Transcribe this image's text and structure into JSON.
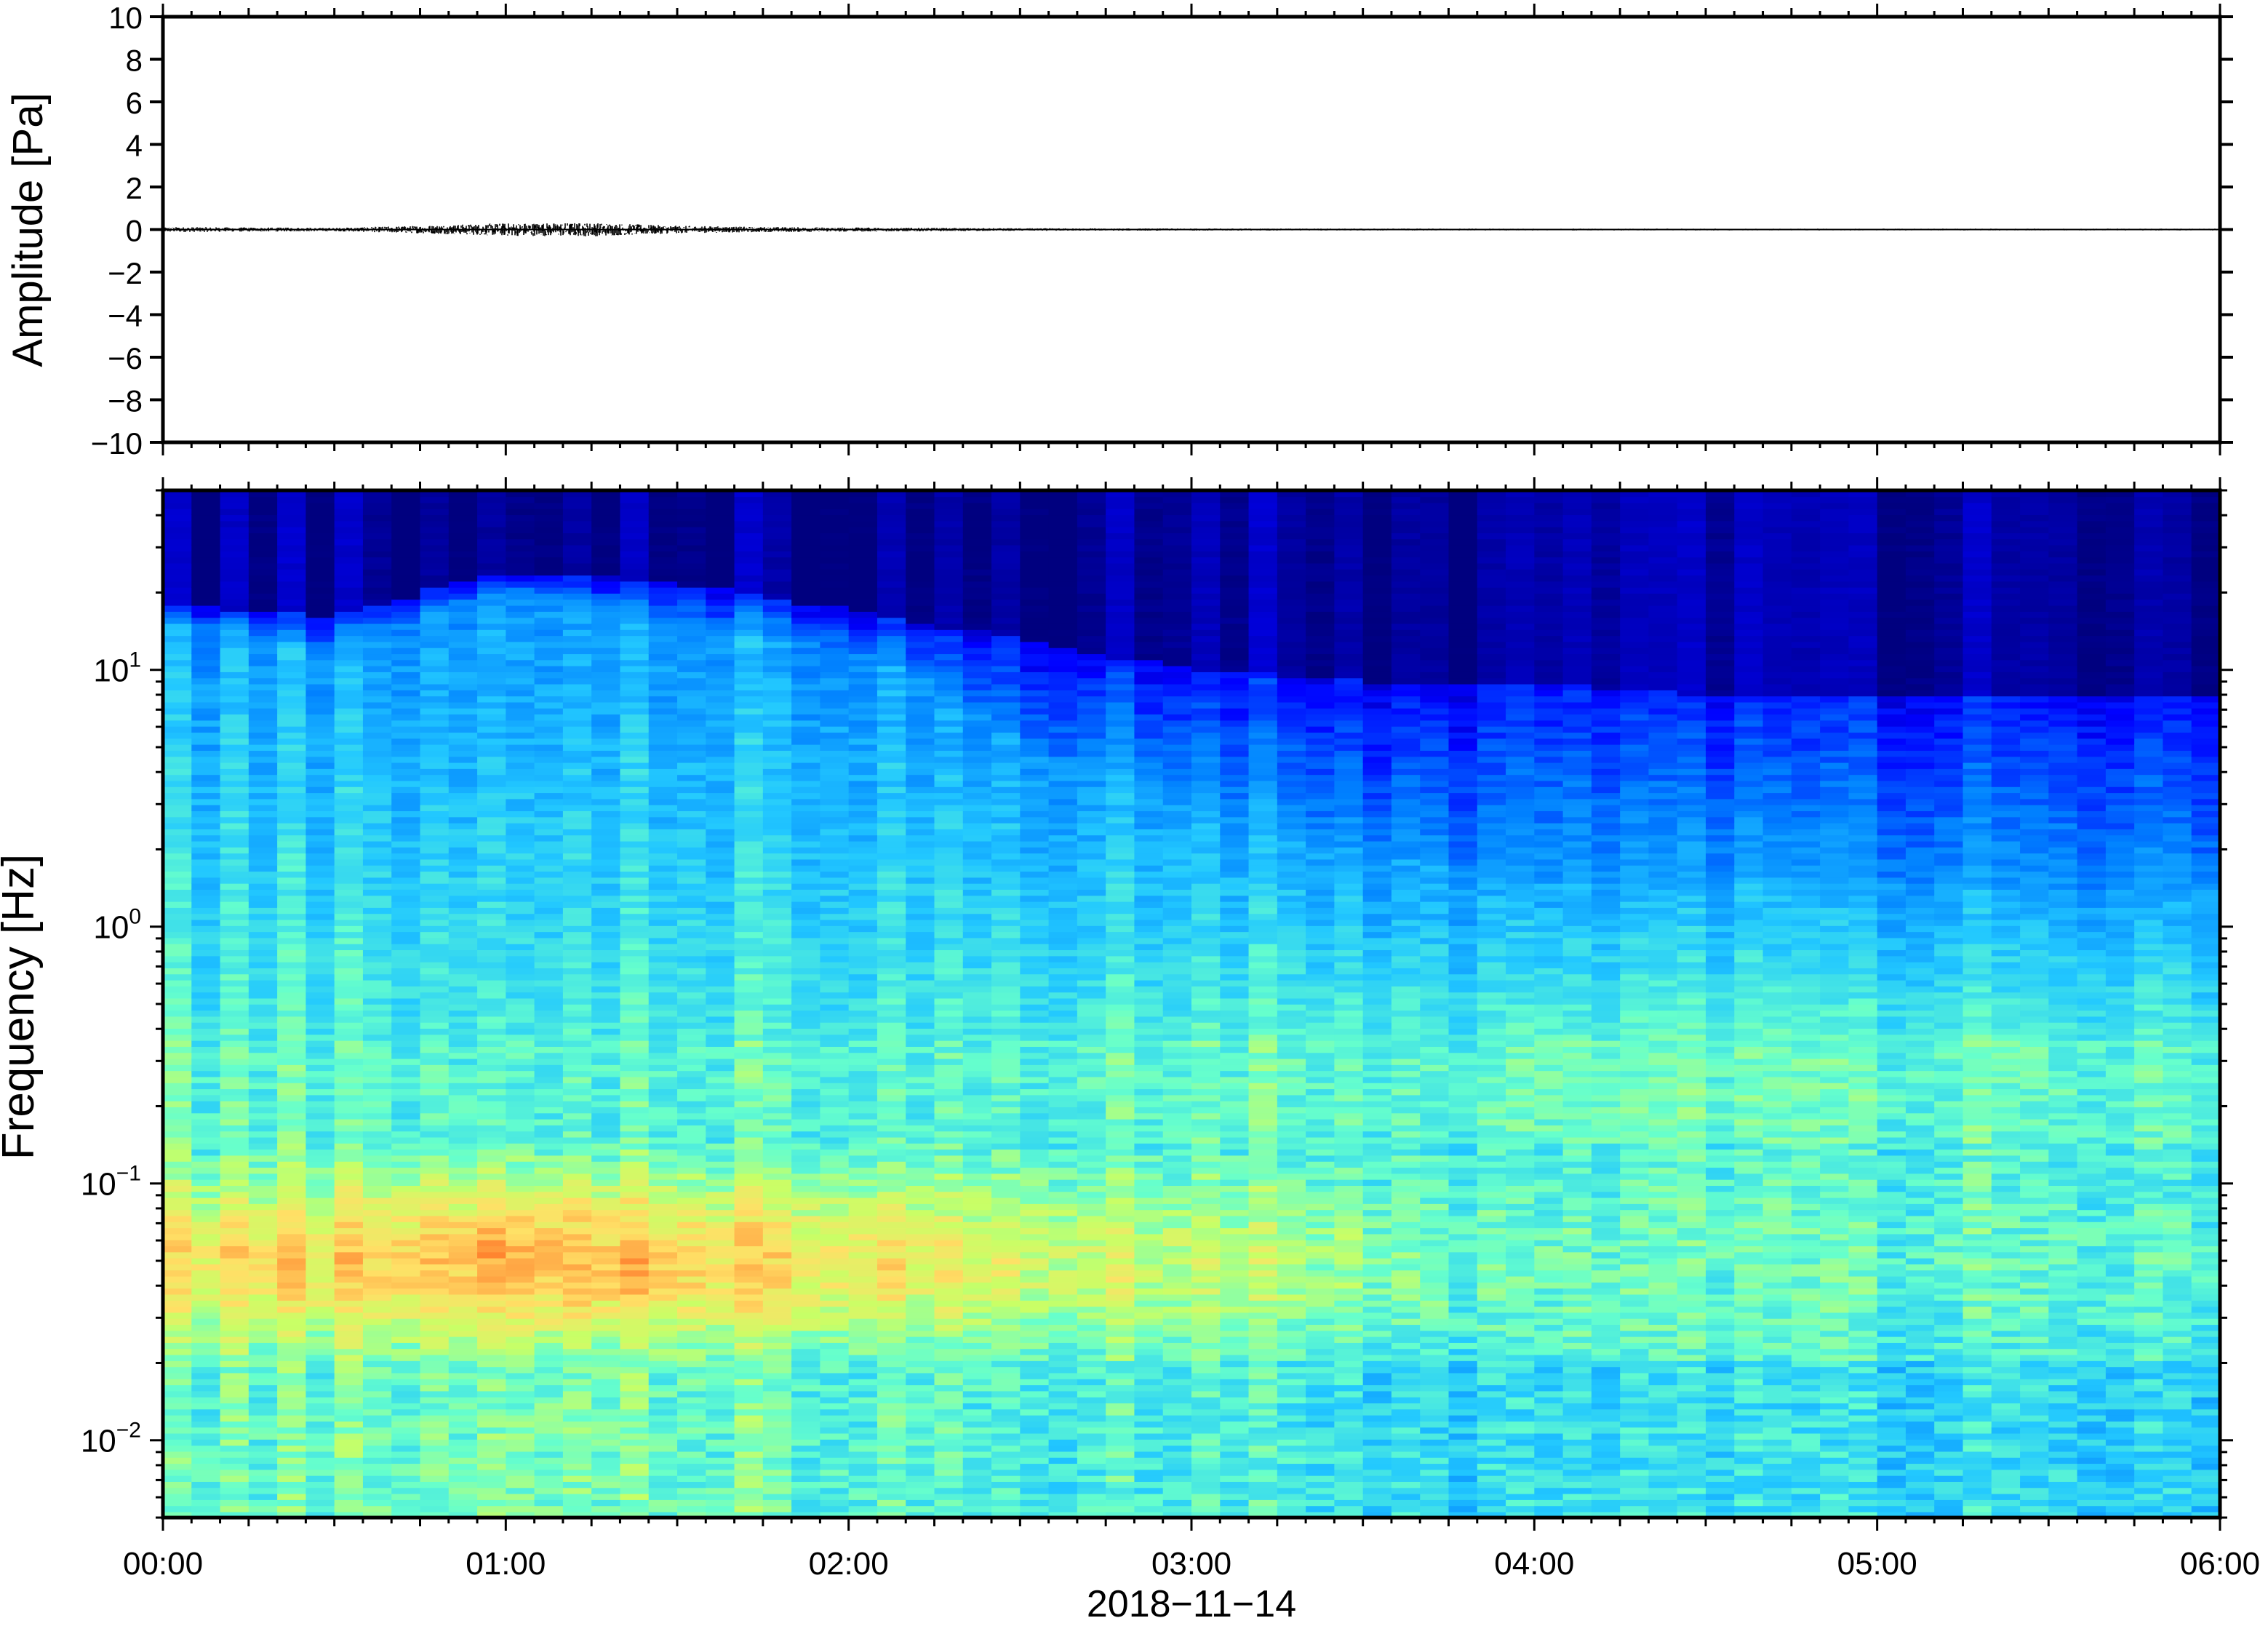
{
  "chart_data": [
    {
      "type": "line",
      "title": "",
      "ylabel": "Amplitude [Pa]",
      "xlabel": "",
      "ylim": [
        -10,
        10
      ],
      "yticks": [
        10,
        8,
        6,
        4,
        2,
        0,
        -2,
        -4,
        -6,
        -8,
        -10
      ],
      "ytick_labels": [
        "10",
        "8",
        "6",
        "4",
        "2",
        "0",
        "−2",
        "−4",
        "−6",
        "−8",
        "−10"
      ],
      "xlim_hours": [
        0,
        6
      ],
      "series": [
        {
          "color": "#000000",
          "x_hours": [
            0.0,
            0.5,
            0.75,
            1.0,
            1.25,
            1.5,
            1.75,
            2.0,
            2.5,
            3.0,
            4.0,
            5.0,
            6.0
          ],
          "amplitude_envelope": [
            0.12,
            0.08,
            0.18,
            0.3,
            0.32,
            0.18,
            0.12,
            0.1,
            0.06,
            0.05,
            0.04,
            0.04,
            0.04
          ]
        }
      ],
      "grid": false
    },
    {
      "type": "heatmap",
      "title": "",
      "ylabel": "Frequency [Hz]",
      "xlabel": "2018−11−14",
      "yscale": "log",
      "ylim": [
        0.005,
        50
      ],
      "ytick_values": [
        0.01,
        0.1,
        1,
        10
      ],
      "ytick_labels": [
        {
          "base": "10",
          "exp": "−2"
        },
        {
          "base": "10",
          "exp": "−1"
        },
        {
          "base": "10",
          "exp": "0"
        },
        {
          "base": "10",
          "exp": "1"
        }
      ],
      "xlim_hours": [
        0,
        6
      ],
      "xtick_hours": [
        0,
        1,
        2,
        3,
        4,
        5,
        6
      ],
      "xtick_labels": [
        "00:00",
        "01:00",
        "02:00",
        "03:00",
        "04:00",
        "05:00",
        "06:00"
      ],
      "colormap": [
        "#00007f",
        "#0000ff",
        "#007fff",
        "#22c8ff",
        "#66ffcc",
        "#c8ff66",
        "#ffe066",
        "#ff9f40",
        "#ff3300",
        "#7f0000"
      ],
      "time_hours": [
        0.0,
        0.5,
        1.0,
        1.5,
        2.0,
        2.5,
        3.0,
        3.5,
        4.0,
        4.5,
        5.0,
        5.5,
        6.0
      ],
      "upper_band_edge_hz": [
        18,
        16,
        24,
        22,
        17,
        13,
        10,
        9,
        9,
        8,
        8,
        8,
        8
      ],
      "noise_floor_edge_hz": [
        15,
        12,
        20,
        15,
        12,
        5,
        3,
        2,
        1.5,
        1.5,
        1.5,
        1.4,
        1.4
      ],
      "microbarom_peak_hz": 0.05,
      "microbarom_peak_intensity": [
        0.64,
        0.68,
        0.76,
        0.7,
        0.66,
        0.6,
        0.56,
        0.5,
        0.44,
        0.44,
        0.44,
        0.44,
        0.44
      ],
      "grid": false
    }
  ]
}
